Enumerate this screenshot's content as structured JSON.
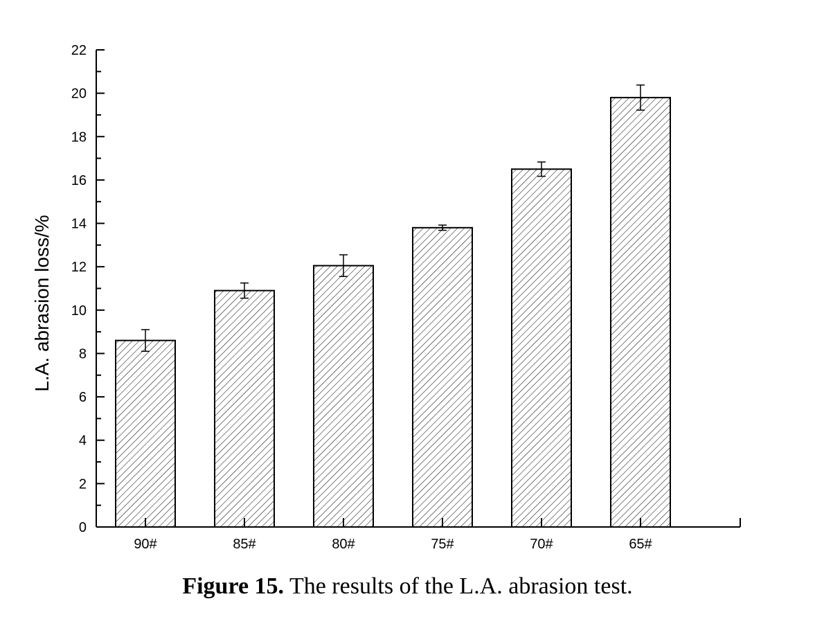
{
  "chart_data": {
    "type": "bar",
    "categories": [
      "90#",
      "85#",
      "80#",
      "75#",
      "70#",
      "65#"
    ],
    "values": [
      8.6,
      10.9,
      12.05,
      13.8,
      16.5,
      19.8
    ],
    "errors": [
      0.5,
      0.35,
      0.5,
      0.12,
      0.33,
      0.58
    ],
    "xlabel": "",
    "ylabel": "L.A. abrasion loss/%",
    "ylim": [
      0,
      22
    ],
    "yticks": [
      0,
      2,
      4,
      6,
      8,
      10,
      12,
      14,
      16,
      18,
      20,
      22
    ],
    "bar_fill": "hatched diagonal",
    "grid": false
  },
  "caption": {
    "label": "Figure 15.",
    "text": "The results of the L.A. abrasion test."
  }
}
